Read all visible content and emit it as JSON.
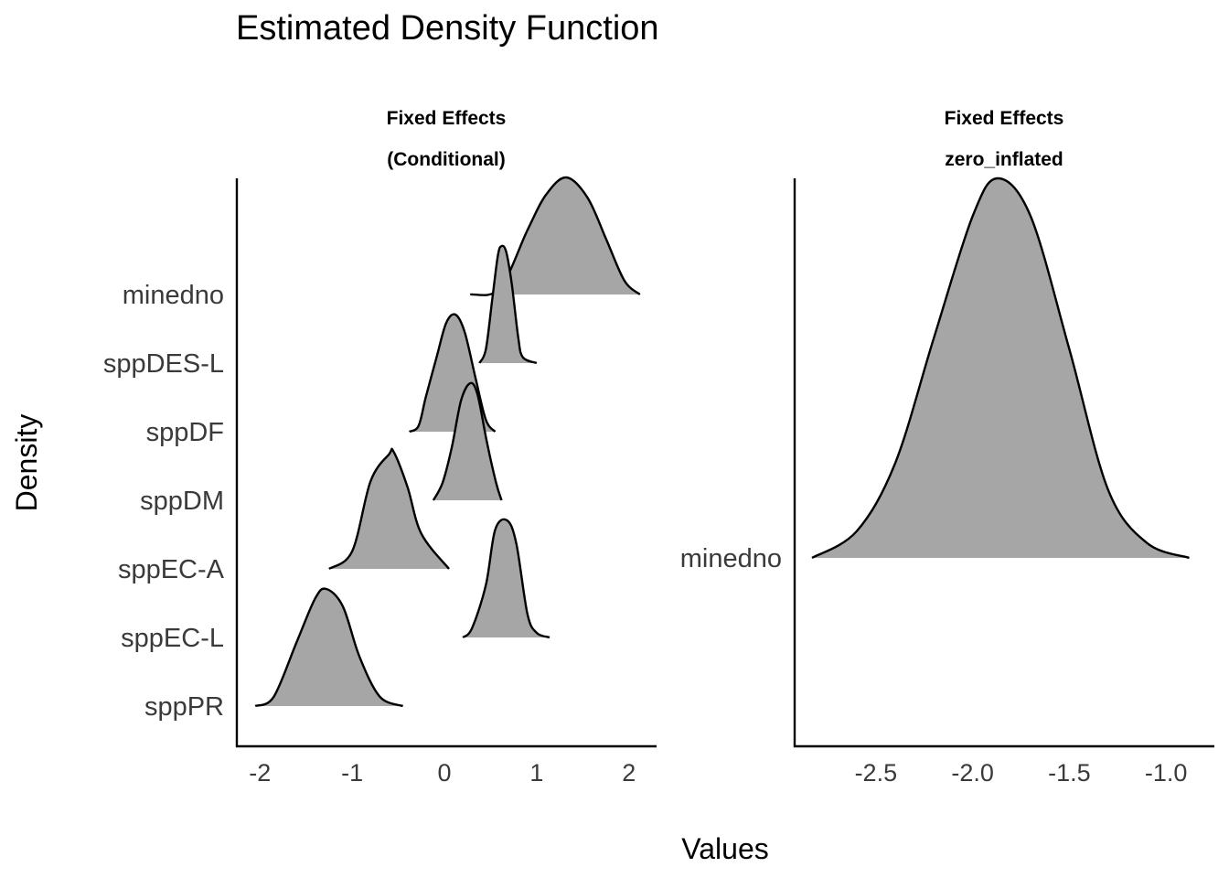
{
  "chart_data": {
    "type": "area",
    "title": "Estimated Density Function",
    "xlabel": "Values",
    "ylabel": "Density",
    "colors": {
      "fill": "#a6a6a6",
      "outline": "#000000"
    },
    "panels": [
      {
        "strip": [
          "Fixed Effects",
          "(Conditional)"
        ],
        "xlim": [
          -2.25,
          2.3
        ],
        "xticks": [
          -2,
          -1,
          0,
          1,
          2
        ],
        "xtick_labels": [
          "-2",
          "-1",
          "0",
          "1",
          "2"
        ],
        "categories": [
          "minedno",
          "sppDES-L",
          "sppDF",
          "sppDM",
          "sppEC-A",
          "sppEC-L",
          "sppPR"
        ],
        "series": [
          {
            "name": "minedno",
            "x": [
              0.28,
              0.6,
              0.9,
              1.1,
              1.32,
              1.55,
              1.75,
              1.95,
              2.12
            ],
            "density": [
              0.0,
              0.05,
              0.55,
              0.85,
              1.0,
              0.83,
              0.48,
              0.12,
              0.0
            ]
          },
          {
            "name": "sppDES-L",
            "x": [
              0.38,
              0.45,
              0.52,
              0.58,
              0.62,
              0.67,
              0.73,
              0.8,
              0.85,
              1.0
            ],
            "density": [
              0.0,
              0.12,
              0.55,
              0.92,
              1.0,
              0.95,
              0.68,
              0.22,
              0.05,
              0.0
            ]
          },
          {
            "name": "sppDF",
            "x": [
              -0.38,
              -0.28,
              -0.2,
              -0.08,
              0.02,
              0.12,
              0.22,
              0.34,
              0.45,
              0.55
            ],
            "density": [
              0.0,
              0.05,
              0.3,
              0.65,
              0.93,
              1.0,
              0.85,
              0.45,
              0.1,
              0.0
            ]
          },
          {
            "name": "sppDM",
            "x": [
              -0.12,
              -0.02,
              0.08,
              0.18,
              0.28,
              0.36,
              0.46,
              0.56,
              0.62
            ],
            "density": [
              0.0,
              0.15,
              0.45,
              0.85,
              1.0,
              0.9,
              0.5,
              0.15,
              0.0
            ]
          },
          {
            "name": "sppEC-A",
            "x": [
              -1.25,
              -1.0,
              -0.8,
              -0.6,
              -0.55,
              -0.4,
              -0.25,
              0.05
            ],
            "density": [
              0.0,
              0.15,
              0.75,
              0.98,
              1.0,
              0.7,
              0.3,
              0.0
            ]
          },
          {
            "name": "sppEC-L",
            "x": [
              0.2,
              0.3,
              0.45,
              0.55,
              0.68,
              0.78,
              0.9,
              1.0,
              1.14
            ],
            "density": [
              0.0,
              0.08,
              0.45,
              0.92,
              1.0,
              0.8,
              0.2,
              0.04,
              0.0
            ]
          },
          {
            "name": "sppPR",
            "x": [
              -2.05,
              -1.85,
              -1.6,
              -1.4,
              -1.28,
              -1.1,
              -0.92,
              -0.7,
              -0.45
            ],
            "density": [
              0.0,
              0.08,
              0.55,
              0.92,
              1.0,
              0.85,
              0.42,
              0.08,
              0.0
            ]
          }
        ]
      },
      {
        "strip": [
          "Fixed Effects",
          "zero_inflated"
        ],
        "xlim": [
          -2.92,
          -0.75
        ],
        "xticks": [
          -2.5,
          -2.0,
          -1.5,
          -1.0
        ],
        "xtick_labels": [
          "-2.5",
          "-2.0",
          "-1.5",
          "-1.0"
        ],
        "categories": [
          "minedno"
        ],
        "series": [
          {
            "name": "minedno",
            "x": [
              -2.83,
              -2.6,
              -2.4,
              -2.2,
              -2.0,
              -1.87,
              -1.7,
              -1.5,
              -1.3,
              -1.1,
              -0.88
            ],
            "density": [
              0.0,
              0.07,
              0.25,
              0.58,
              0.9,
              1.0,
              0.9,
              0.55,
              0.18,
              0.04,
              0.0
            ]
          }
        ]
      }
    ]
  }
}
